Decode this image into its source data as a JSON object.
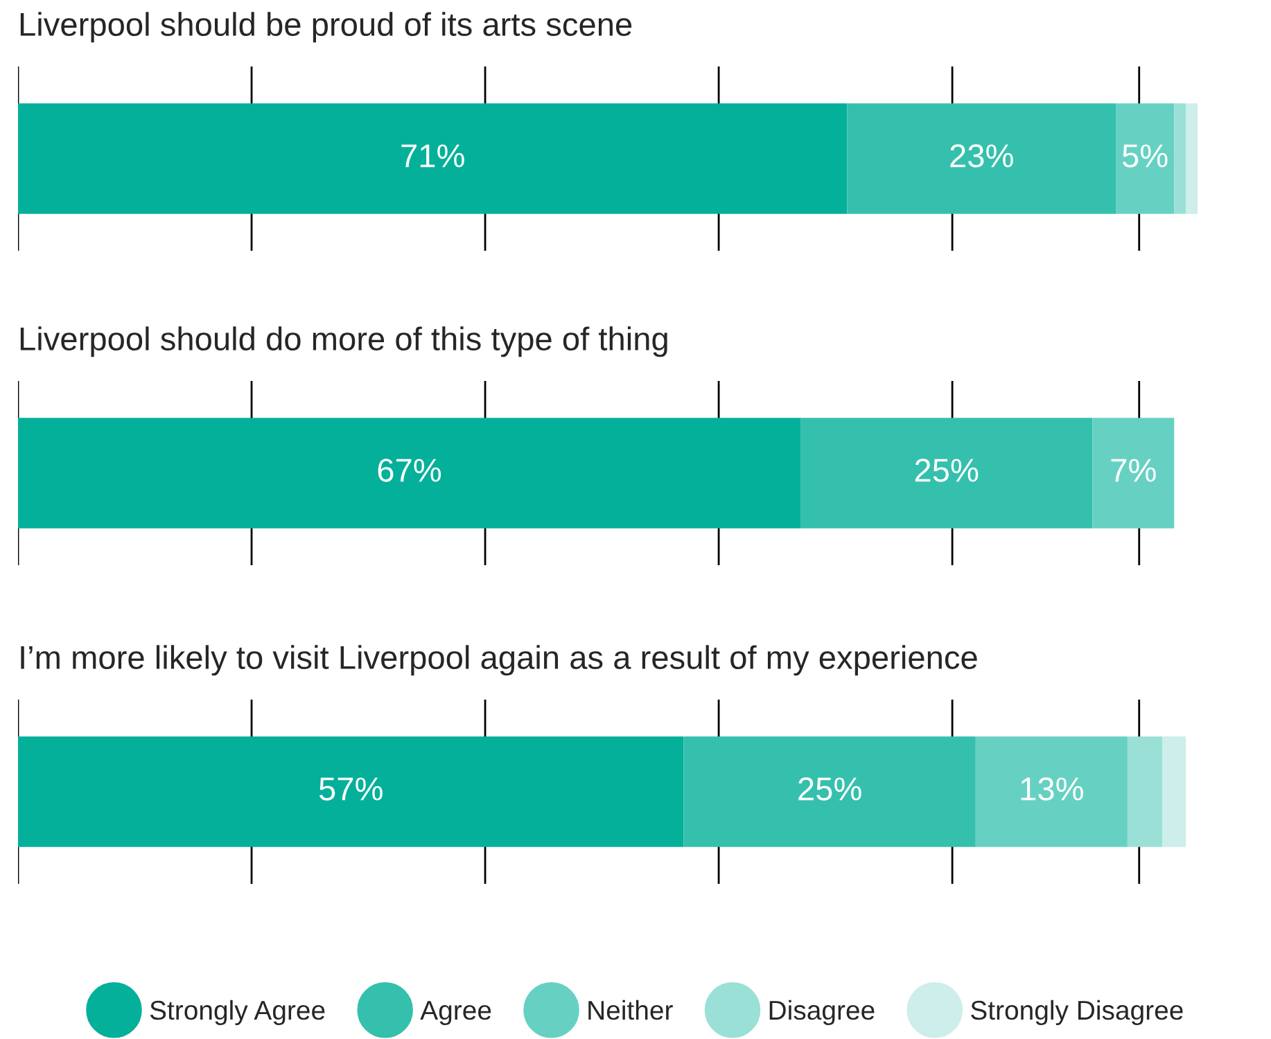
{
  "chart_data": [
    {
      "type": "bar",
      "orientation": "horizontal",
      "stacked": true,
      "title": "Liverpool should be proud of its arts scene",
      "categories": [
        null
      ],
      "xticks": [
        {
          "value": 0,
          "label": null
        },
        {
          "value": 20,
          "label": null
        },
        {
          "value": 40,
          "label": null
        },
        {
          "value": 60,
          "label": null
        },
        {
          "value": 80,
          "label": null
        },
        {
          "value": 96,
          "label": null
        }
      ],
      "grid": "x",
      "series": [
        {
          "color": "#05b09a",
          "values": [
            71
          ],
          "value_labels": [
            "71%"
          ]
        },
        {
          "color": "#35c0ad",
          "values": [
            23
          ],
          "value_labels": [
            "23%"
          ]
        },
        {
          "color": "#66d1c2",
          "values": [
            5
          ],
          "value_labels": [
            "5%"
          ]
        },
        {
          "color": "#9be0d6",
          "values": [
            1
          ],
          "value_labels": [
            null
          ]
        },
        {
          "color": "#cdeeea",
          "values": [
            1
          ],
          "value_labels": [
            null
          ]
        }
      ]
    },
    {
      "type": "bar",
      "orientation": "horizontal",
      "stacked": true,
      "title": "Liverpool should do more of this type of thing",
      "categories": [
        null
      ],
      "xticks": [
        {
          "value": 0,
          "label": null
        },
        {
          "value": 20,
          "label": null
        },
        {
          "value": 40,
          "label": null
        },
        {
          "value": 60,
          "label": null
        },
        {
          "value": 80,
          "label": null
        },
        {
          "value": 96,
          "label": null
        }
      ],
      "grid": "x",
      "series": [
        {
          "color": "#05b09a",
          "values": [
            67
          ],
          "value_labels": [
            "67%"
          ]
        },
        {
          "color": "#35c0ad",
          "values": [
            25
          ],
          "value_labels": [
            "25%"
          ]
        },
        {
          "color": "#66d1c2",
          "values": [
            7
          ],
          "value_labels": [
            "7%"
          ]
        }
      ]
    },
    {
      "type": "bar",
      "orientation": "horizontal",
      "stacked": true,
      "title": "I’m more likely to visit Liverpool again as a result of my experience",
      "categories": [
        null
      ],
      "xticks": [
        {
          "value": 0,
          "label": null
        },
        {
          "value": 20,
          "label": null
        },
        {
          "value": 40,
          "label": null
        },
        {
          "value": 60,
          "label": null
        },
        {
          "value": 80,
          "label": null
        },
        {
          "value": 96,
          "label": null
        }
      ],
      "grid": "x",
      "legend": "bottom",
      "series": [
        {
          "name": "Strongly Agree",
          "color": "#05b09a",
          "values": [
            57
          ],
          "value_labels": [
            "57%"
          ]
        },
        {
          "name": "Agree",
          "color": "#35c0ad",
          "values": [
            25
          ],
          "value_labels": [
            "25%"
          ]
        },
        {
          "name": "Neither",
          "color": "#66d1c2",
          "values": [
            13
          ],
          "value_labels": [
            "13%"
          ]
        },
        {
          "name": "Disagree",
          "color": "#9be0d6",
          "values": [
            3
          ],
          "value_labels": [
            null
          ]
        },
        {
          "name": "Strongly Disagree",
          "color": "#cdeeea",
          "values": [
            2
          ],
          "value_labels": [
            null
          ]
        }
      ]
    }
  ]
}
